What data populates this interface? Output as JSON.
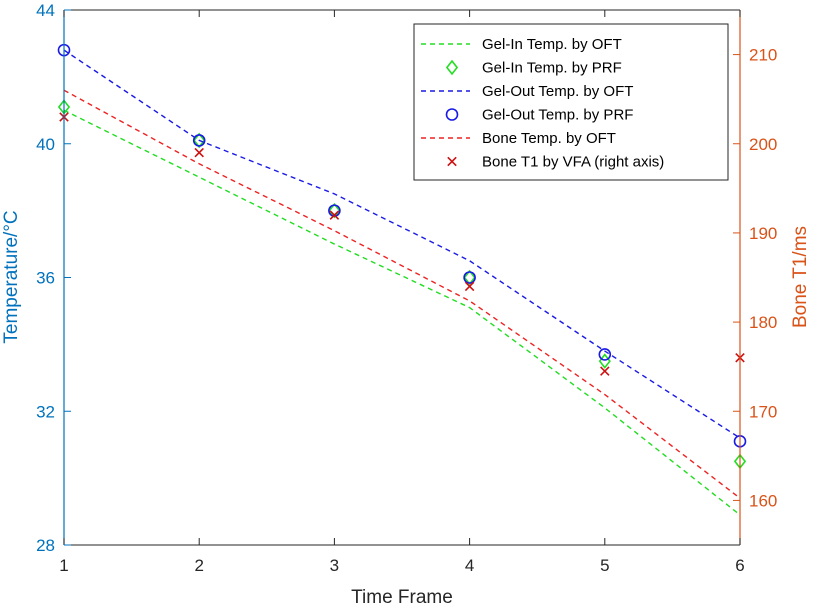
{
  "chart_data": {
    "type": "line",
    "title": "",
    "xlabel": "Time Frame",
    "ylabel_left": "Temperature/°C",
    "ylabel_right": "Bone T1/ms",
    "xlim": [
      1,
      6
    ],
    "ylim_left": [
      28,
      44
    ],
    "ylim_right": [
      155,
      215
    ],
    "x_ticks": [
      1,
      2,
      3,
      4,
      5,
      6
    ],
    "y_left_ticks": [
      28,
      32,
      36,
      40,
      44
    ],
    "y_right_ticks": [
      160,
      170,
      180,
      190,
      200,
      210
    ],
    "left_axis_color": "#0072BD",
    "right_axis_color": "#D95319",
    "legend_position": "top-right",
    "series": [
      {
        "name": "Gel-In Temp. by OFT",
        "kind": "dashed-line",
        "axis": "left",
        "color": "#22DD22",
        "x": [
          1,
          2,
          3,
          4,
          5,
          6
        ],
        "y": [
          41.0,
          39.0,
          37.0,
          35.1,
          32.1,
          28.9
        ]
      },
      {
        "name": "Gel-In Temp. by PRF",
        "kind": "diamond-markers",
        "axis": "left",
        "color": "#22DD22",
        "x": [
          1,
          2,
          3,
          4,
          5,
          6
        ],
        "y": [
          41.1,
          40.1,
          38.0,
          36.0,
          33.5,
          30.5
        ]
      },
      {
        "name": "Gel-Out Temp. by OFT",
        "kind": "dashed-line",
        "axis": "left",
        "color": "#1A1AE6",
        "x": [
          1,
          2,
          3,
          4,
          5,
          6
        ],
        "y": [
          42.8,
          40.1,
          38.5,
          36.5,
          33.8,
          31.2
        ]
      },
      {
        "name": "Gel-Out Temp. by PRF",
        "kind": "circle-markers",
        "axis": "left",
        "color": "#1A1AE6",
        "x": [
          1,
          2,
          3,
          4,
          5,
          6
        ],
        "y": [
          42.8,
          40.1,
          38.0,
          36.0,
          33.7,
          31.1
        ]
      },
      {
        "name": "Bone Temp. by OFT",
        "kind": "dashed-line",
        "axis": "left",
        "color": "#EE2222",
        "x": [
          1,
          2,
          3,
          4,
          5,
          6
        ],
        "y": [
          41.6,
          39.4,
          37.4,
          35.3,
          32.5,
          29.4
        ]
      },
      {
        "name": "Bone T1 by VFA (right axis)",
        "kind": "x-markers",
        "axis": "right",
        "color": "#CC1111",
        "x": [
          1,
          2,
          3,
          4,
          5,
          6
        ],
        "y": [
          203,
          199,
          192,
          184,
          174.5,
          176
        ]
      }
    ]
  }
}
